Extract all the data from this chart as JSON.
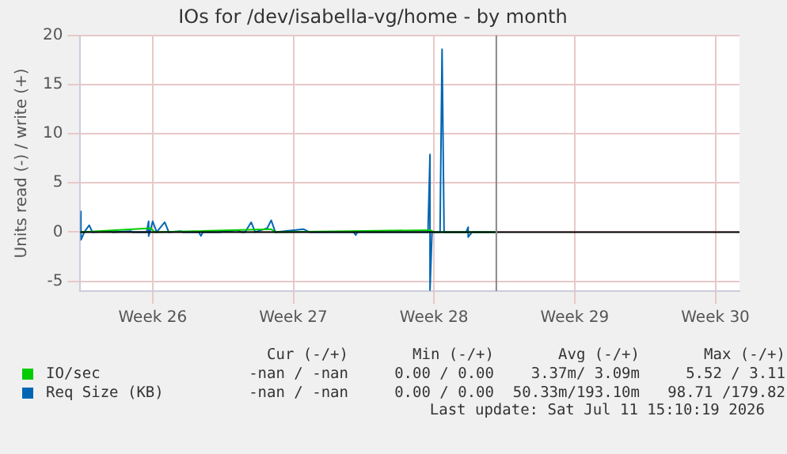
{
  "chart_data": {
    "type": "line",
    "title": "IOs for /dev/isabella-vg/home - by month",
    "ylabel": "Units read (-) / write (+)",
    "xlim": [
      "2026-06-21T21:36",
      "2026-07-24T16:48"
    ],
    "xticks": [
      {
        "value": "2026-06-25T12:00",
        "label": "Week 26"
      },
      {
        "value": "2026-07-02T12:00",
        "label": "Week 27"
      },
      {
        "value": "2026-07-09T12:00",
        "label": "Week 28"
      },
      {
        "value": "2026-07-16T12:00",
        "label": "Week 29"
      },
      {
        "value": "2026-07-23T12:00",
        "label": "Week 30"
      }
    ],
    "ylim": [
      -6,
      20
    ],
    "yticks": [
      -5,
      0,
      5,
      10,
      15,
      20
    ],
    "grid": true,
    "legend": "bottom",
    "marker": "none",
    "line_style": "solid",
    "series": [
      {
        "name": "IO/sec",
        "color": "#00cc00",
        "x": [
          "2026-06-21T21:36",
          "2026-06-25T09:36",
          "2026-06-25T14:24",
          "2026-07-01T09:36",
          "2026-07-01T14:24",
          "2026-07-09T07:12",
          "2026-07-09T12:00",
          "2026-07-12T14:24"
        ],
        "values": [
          0,
          0.4,
          0,
          0.3,
          0,
          0.2,
          0,
          0
        ]
      },
      {
        "name": "Req Size (KB)",
        "color": "#0066b3",
        "x": [
          "2026-06-21T21:36",
          "2026-06-21T22:19",
          "2026-06-21T22:19",
          "2026-06-22T02:24",
          "2026-06-22T08:10",
          "2026-06-22T12:00",
          "2026-06-23T09:36",
          "2026-06-23T12:00",
          "2026-06-24T09:36",
          "2026-06-24T12:00",
          "2026-06-25T04:48",
          "2026-06-25T07:12",
          "2026-06-25T07:12",
          "2026-06-25T09:36",
          "2026-06-25T12:00",
          "2026-06-25T16:48",
          "2026-06-26T02:24",
          "2026-06-26T07:12",
          "2026-06-26T21:36",
          "2026-06-27T00:00",
          "2026-06-27T19:12",
          "2026-06-27T21:36",
          "2026-06-28T00:00",
          "2026-06-28T19:12",
          "2026-06-29T16:48",
          "2026-06-29T21:36",
          "2026-06-30T02:24",
          "2026-06-30T09:36",
          "2026-06-30T14:24",
          "2026-07-01T04:48",
          "2026-07-01T09:36",
          "2026-07-01T14:24",
          "2026-07-03T00:00",
          "2026-07-03T07:12",
          "2026-07-05T12:00",
          "2026-07-05T14:24",
          "2026-07-05T16:48",
          "2026-07-09T04:48",
          "2026-07-09T07:12",
          "2026-07-09T07:12",
          "2026-07-09T09:36",
          "2026-07-09T19:12",
          "2026-07-09T21:36",
          "2026-07-10T00:00",
          "2026-07-11T02:24",
          "2026-07-11T04:48",
          "2026-07-11T04:48",
          "2026-07-11T09:36",
          "2026-07-12T14:24"
        ],
        "values": [
          0,
          2.1,
          -0.8,
          0,
          0.7,
          0,
          0.1,
          0,
          0.1,
          0,
          0,
          1.1,
          -0.4,
          0.3,
          1.1,
          0,
          1.0,
          0,
          0.1,
          0,
          0,
          -0.4,
          0,
          0,
          0.2,
          0,
          0,
          1.0,
          0,
          0.4,
          1.2,
          0,
          0.3,
          0,
          0,
          -0.3,
          0,
          0,
          7.9,
          -5.9,
          0,
          0,
          18.6,
          0,
          0,
          0.5,
          -0.5,
          0,
          0
        ]
      }
    ],
    "ref_lines": [
      {
        "axis": "y",
        "value": 0,
        "color": "#000000"
      },
      {
        "axis": "x",
        "value": "2026-07-12T14:24",
        "color": "#888888"
      }
    ],
    "annotations": [
      "Cur (-/+)",
      "Min (-/+)",
      "Avg (-/+)",
      "Max (-/+)",
      "-nan / -nan",
      "0.00 / 0.00",
      "3.37m/ 3.09m",
      "5.52 / 3.11",
      "-nan / -nan",
      "0.00 / 0.00",
      "50.33m/193.10m",
      "98.71 /179.82",
      "Last update: Sat Jul 11 15:10:19 2026"
    ]
  }
}
